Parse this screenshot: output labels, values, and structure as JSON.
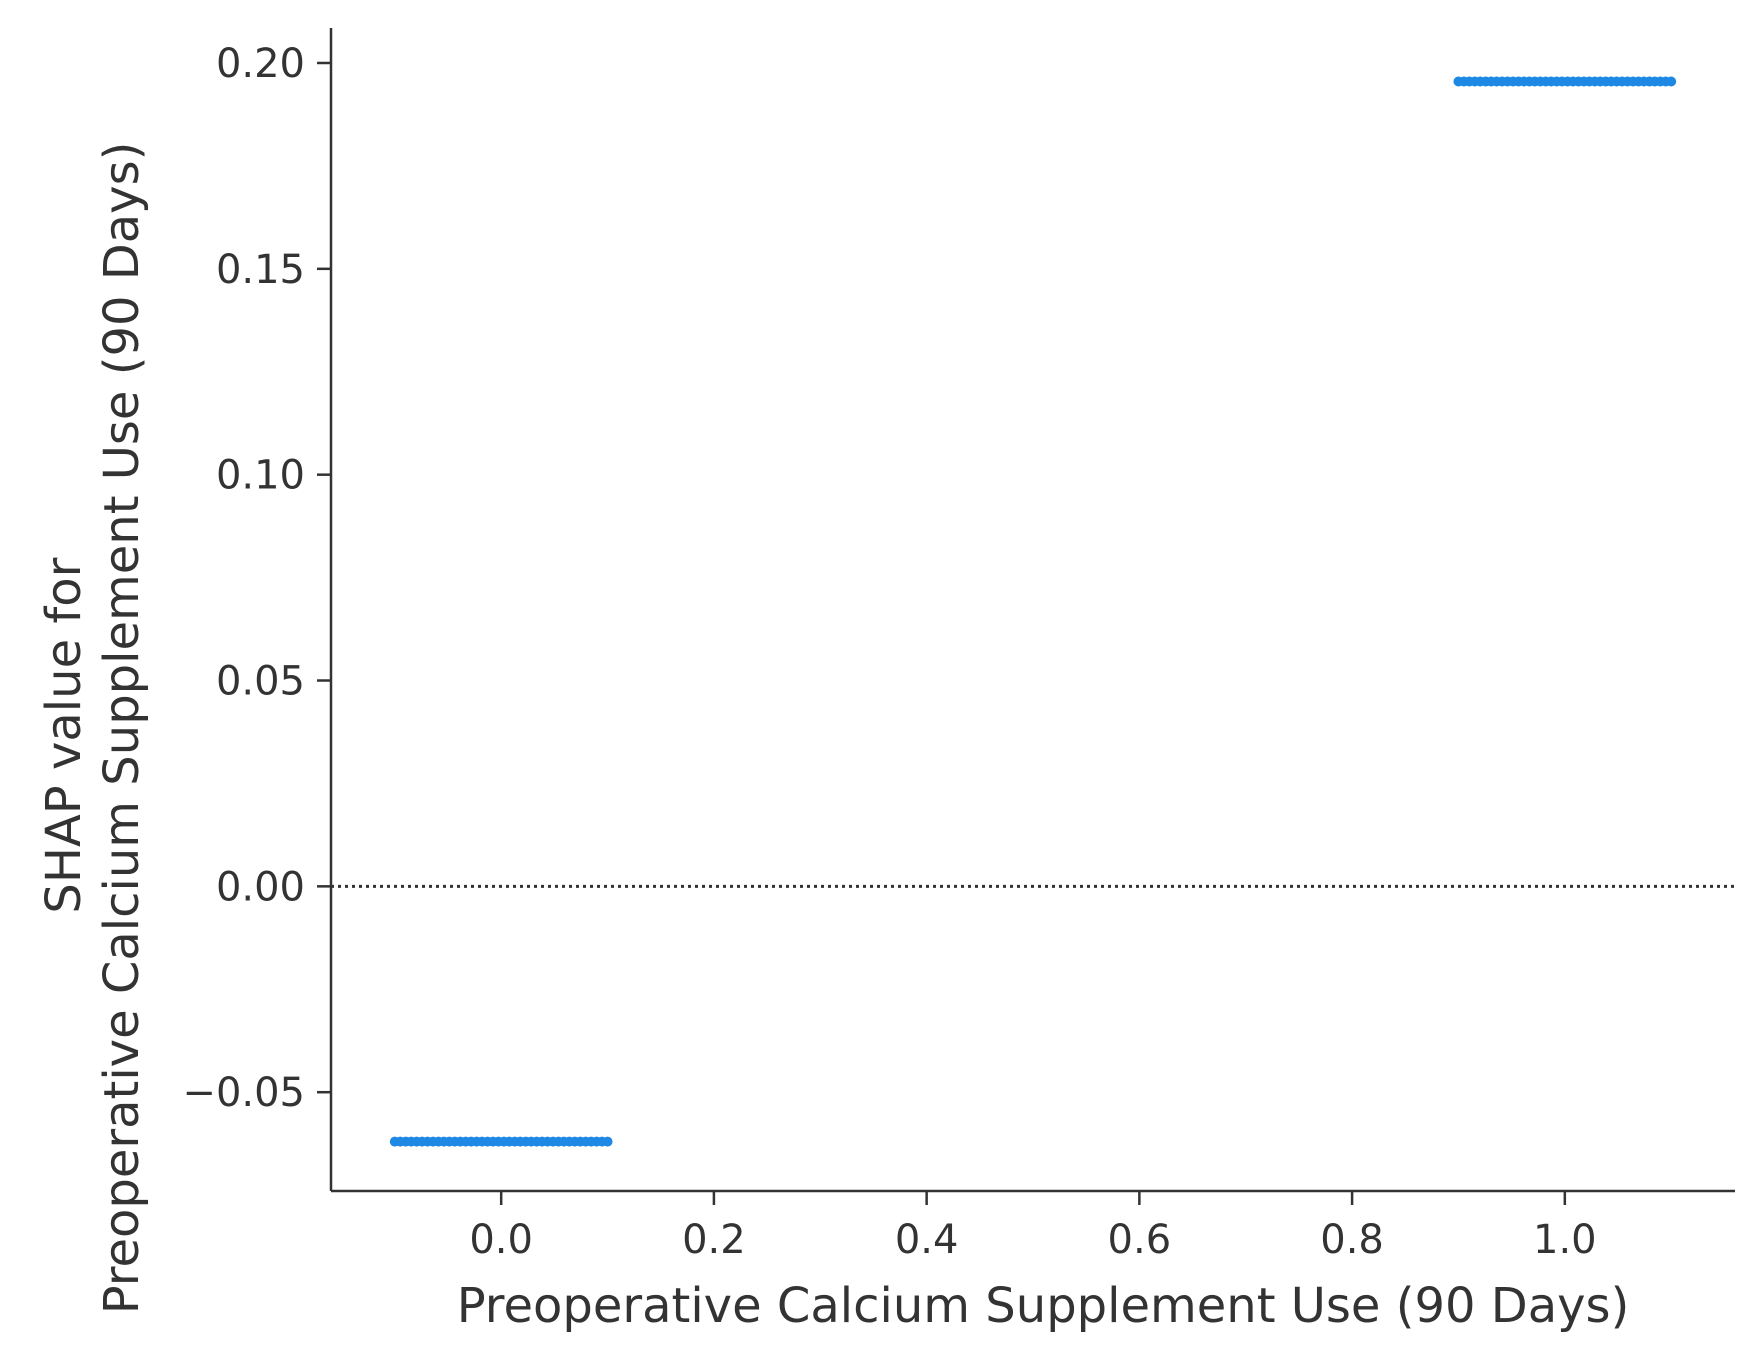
{
  "chart_data": {
    "type": "scatter",
    "title": "",
    "xlabel": "Preoperative Calcium Supplement Use (90 Days)",
    "ylabel_lines": [
      "SHAP value for",
      "Preoperative Calcium Supplement Use (90 Days)"
    ],
    "xlim": [
      -0.16,
      1.16
    ],
    "ylim": [
      -0.074,
      0.2085
    ],
    "xticks": [
      0.0,
      0.2,
      0.4,
      0.6,
      0.8,
      1.0
    ],
    "xtick_labels": [
      "0.0",
      "0.2",
      "0.4",
      "0.6",
      "0.8",
      "1.0"
    ],
    "yticks": [
      -0.05,
      0.0,
      0.05,
      0.1,
      0.15,
      0.2
    ],
    "ytick_labels": [
      "−0.05",
      "0.00",
      "0.05",
      "0.10",
      "0.15",
      "0.20"
    ],
    "grid": false,
    "zero_line": true,
    "series": [
      {
        "jitter_range": [
          -0.1,
          0.1
        ],
        "points": [
          {
            "x": 0,
            "y": -0.062
          },
          {
            "x": 1,
            "y": 0.1955
          }
        ]
      }
    ],
    "colors": {
      "points": "#1E88E5",
      "axis": "#333333",
      "zero_line": "#333333"
    }
  }
}
